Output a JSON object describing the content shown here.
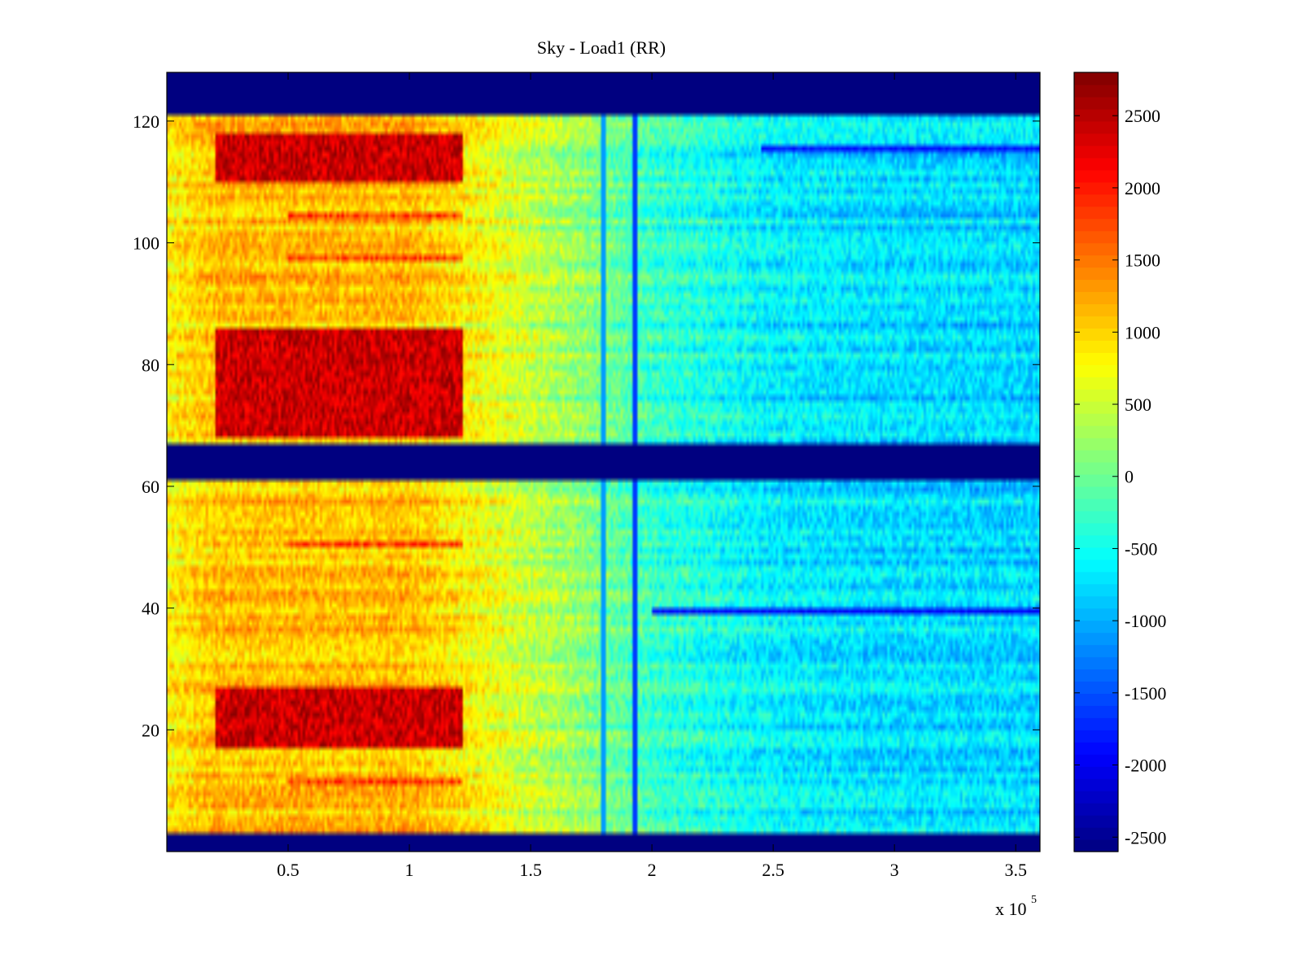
{
  "chart_data": {
    "type": "heatmap",
    "title": "Sky - Load1 (RR)",
    "xlabel": "",
    "ylabel": "",
    "x_multiplier_label": "x 10",
    "x_multiplier_exponent": "5",
    "xlim": [
      0,
      3.6
    ],
    "ylim": [
      0,
      128
    ],
    "xticks": [
      0.5,
      1,
      1.5,
      2,
      2.5,
      3,
      3.5
    ],
    "xtick_labels": [
      "0.5",
      "1",
      "1.5",
      "2",
      "2.5",
      "3",
      "3.5"
    ],
    "yticks": [
      20,
      40,
      60,
      80,
      100,
      120
    ],
    "ytick_labels": [
      "20",
      "40",
      "60",
      "80",
      "100",
      "120"
    ],
    "colorbar": {
      "colormap": "jet",
      "clim": [
        -2600,
        2800
      ],
      "ticks": [
        2500,
        2000,
        1500,
        1000,
        500,
        0,
        -500,
        -1000,
        -1500,
        -2000,
        -2500
      ],
      "tick_labels": [
        "2500",
        "2000",
        "1500",
        "1000",
        "500",
        "0",
        "-500",
        "-1000",
        "-1500",
        "-2000",
        "-2500"
      ]
    },
    "masked_row_ranges": [
      [
        0,
        3
      ],
      [
        61,
        67
      ],
      [
        121,
        128
      ]
    ],
    "hot_regions": [
      {
        "x_range": [
          0.2,
          1.22
        ],
        "rows": [
          [
            68,
            86
          ],
          [
            110,
            118
          ],
          [
            17,
            27
          ]
        ],
        "value": 2400
      },
      {
        "x_range": [
          0.5,
          1.22
        ],
        "rows": [
          [
            11,
            12
          ],
          [
            50,
            51
          ],
          [
            104,
            105
          ],
          [
            97,
            98
          ]
        ],
        "value": 1800
      }
    ],
    "cold_streaks": [
      {
        "row": 39,
        "x_range": [
          2.0,
          3.6
        ],
        "value": -1900
      },
      {
        "row": 115,
        "x_range": [
          2.45,
          3.6
        ],
        "value": -1800
      }
    ],
    "vertical_lines": [
      {
        "x": 1.93,
        "value": -1600
      },
      {
        "x": 1.8,
        "value": -1100
      }
    ],
    "value_trend": {
      "x": [
        0,
        0.2,
        0.5,
        1.0,
        1.25,
        1.5,
        1.7,
        2.0,
        2.5,
        3.0,
        3.6
      ],
      "value": [
        800,
        1100,
        1100,
        1100,
        800,
        450,
        200,
        -300,
        -650,
        -750,
        -800
      ]
    }
  }
}
